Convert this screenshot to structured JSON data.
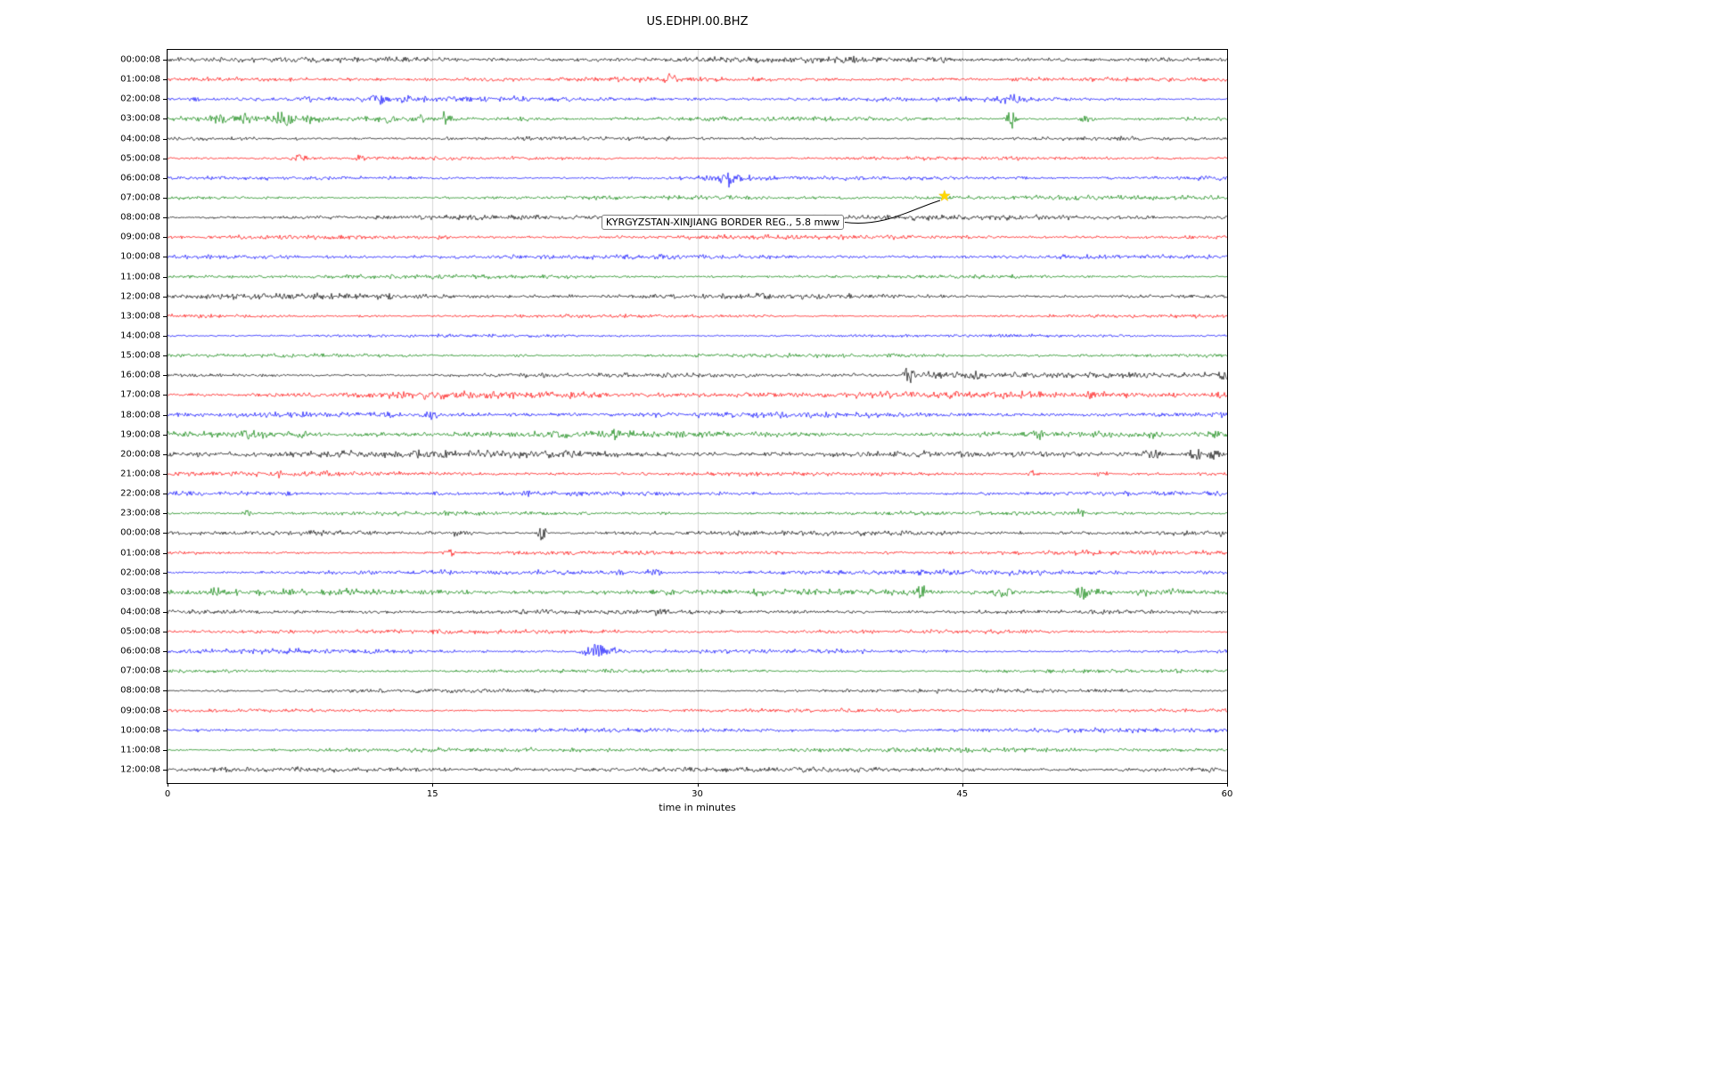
{
  "title": "US.EDHPI.00.BHZ",
  "chart_data": {
    "type": "line",
    "subtype": "seismogram-helicorder",
    "title": "US.EDHPI.00.BHZ",
    "xlabel": "time in minutes",
    "xlim": [
      0,
      60
    ],
    "xticks": [
      0,
      15,
      30,
      45,
      60
    ],
    "grid": "vertical",
    "legend": "none",
    "trace_colors": {
      "black": "#000000",
      "red": "#ff0000",
      "blue": "#0000ff",
      "green": "#008000"
    },
    "color_cycle": [
      "black",
      "red",
      "blue",
      "green"
    ],
    "rows": [
      {
        "label": "00:00:08",
        "color": "black",
        "noise": 1.3,
        "bursts": [
          [
            38.5,
            4,
            0.25
          ],
          [
            44,
            2,
            0.3
          ],
          [
            50.8,
            2.5,
            0.3
          ],
          [
            55.5,
            2,
            0.4
          ]
        ]
      },
      {
        "label": "01:00:08",
        "color": "red",
        "noise": 1.1,
        "bursts": [
          [
            23,
            1.5,
            0.4
          ],
          [
            28.4,
            6,
            0.35
          ]
        ]
      },
      {
        "label": "02:00:08",
        "color": "blue",
        "noise": 1.2,
        "bursts": [
          [
            1.5,
            2,
            0.4
          ],
          [
            8,
            1.8,
            0.4
          ],
          [
            12,
            4.5,
            0.7
          ],
          [
            13.4,
            3.5,
            0.5
          ],
          [
            47.3,
            5,
            0.5
          ],
          [
            48,
            5.5,
            0.5
          ]
        ]
      },
      {
        "label": "03:00:08",
        "color": "green",
        "noise": 1.3,
        "bursts": [
          [
            2.8,
            4.5,
            0.5
          ],
          [
            4.2,
            5,
            0.7
          ],
          [
            6.6,
            7,
            0.7
          ],
          [
            8.1,
            4,
            0.4
          ],
          [
            12.4,
            5.5,
            0.5
          ],
          [
            14.2,
            4.5,
            0.5
          ],
          [
            15.8,
            13,
            0.25
          ],
          [
            20,
            2,
            0.5
          ],
          [
            47.8,
            11,
            0.3
          ],
          [
            52,
            4,
            0.5
          ]
        ]
      },
      {
        "label": "04:00:08",
        "color": "black",
        "noise": 1.1,
        "bursts": [
          [
            16,
            1.5,
            0.3
          ],
          [
            20.3,
            4,
            0.3
          ]
        ]
      },
      {
        "label": "05:00:08",
        "color": "red",
        "noise": 1.1,
        "bursts": [
          [
            7.6,
            5.5,
            0.5
          ],
          [
            10.9,
            4.5,
            0.3
          ]
        ]
      },
      {
        "label": "06:00:08",
        "color": "blue",
        "noise": 1.2,
        "bursts": [
          [
            30.9,
            3.5,
            0.6
          ],
          [
            31.9,
            12,
            0.4
          ],
          [
            32.7,
            4,
            0.6
          ]
        ]
      },
      {
        "label": "07:00:08",
        "color": "green",
        "noise": 1.1,
        "bursts": [
          [
            45,
            1.2,
            2
          ]
        ]
      },
      {
        "label": "08:00:08",
        "color": "black",
        "noise": 1.2,
        "bursts": []
      },
      {
        "label": "09:00:08",
        "color": "red",
        "noise": 1.0,
        "bursts": [
          [
            15.5,
            1.5,
            0.3
          ]
        ]
      },
      {
        "label": "10:00:08",
        "color": "blue",
        "noise": 1.1,
        "bursts": []
      },
      {
        "label": "11:00:08",
        "color": "green",
        "noise": 1.0,
        "bursts": []
      },
      {
        "label": "12:00:08",
        "color": "black",
        "noise": 1.5,
        "bursts": [
          [
            4,
            1.5,
            0.5
          ]
        ]
      },
      {
        "label": "13:00:08",
        "color": "red",
        "noise": 1.0,
        "bursts": []
      },
      {
        "label": "14:00:08",
        "color": "blue",
        "noise": 1.0,
        "bursts": []
      },
      {
        "label": "15:00:08",
        "color": "green",
        "noise": 1.1,
        "bursts": [
          [
            5,
            1.5,
            0.5
          ],
          [
            20,
            1.5,
            0.5
          ]
        ]
      },
      {
        "label": "16:00:08",
        "color": "black",
        "noise": 1.3,
        "bursts": [
          [
            39,
            2,
            0.3
          ],
          [
            42,
            11,
            0.3
          ],
          [
            43.3,
            4,
            0.8
          ],
          [
            44.5,
            4,
            0.8
          ],
          [
            45.8,
            5,
            0.5
          ],
          [
            47.5,
            2.5,
            0.5
          ],
          [
            59.8,
            7,
            0.25
          ]
        ]
      },
      {
        "label": "17:00:08",
        "color": "red",
        "noise": 1.7,
        "bursts": [
          [
            1.5,
            2,
            0.4
          ],
          [
            13.6,
            3.5,
            0.4
          ],
          [
            15.5,
            4,
            0.4
          ],
          [
            39.3,
            3,
            0.3
          ],
          [
            52.3,
            3.5,
            0.3
          ],
          [
            59.6,
            4,
            0.3
          ]
        ]
      },
      {
        "label": "18:00:08",
        "color": "blue",
        "noise": 1.3,
        "bursts": [
          [
            6,
            2.5,
            0.4
          ],
          [
            7.5,
            3.5,
            0.4
          ],
          [
            9.8,
            3.5,
            0.4
          ],
          [
            12.3,
            4,
            0.5
          ],
          [
            14.9,
            5,
            0.4
          ],
          [
            35,
            1.5,
            0.4
          ],
          [
            43.5,
            2.5,
            0.4
          ],
          [
            59.6,
            3,
            0.3
          ]
        ]
      },
      {
        "label": "19:00:08",
        "color": "green",
        "noise": 1.5,
        "bursts": [
          [
            4.6,
            5,
            0.5
          ],
          [
            5.6,
            4,
            0.4
          ],
          [
            7.4,
            5,
            0.5
          ],
          [
            22.6,
            4,
            0.4
          ],
          [
            25.4,
            5,
            0.4
          ],
          [
            33,
            2,
            0.4
          ],
          [
            46.9,
            3.5,
            0.4
          ],
          [
            49.3,
            4.5,
            0.4
          ],
          [
            56,
            3,
            0.4
          ],
          [
            59.5,
            5,
            0.4
          ]
        ]
      },
      {
        "label": "20:00:08",
        "color": "black",
        "noise": 1.7,
        "bursts": [
          [
            1.8,
            3.5,
            0.4
          ],
          [
            22.9,
            4,
            0.4
          ],
          [
            42,
            2,
            0.4
          ],
          [
            55.8,
            7,
            0.5
          ],
          [
            58.3,
            8,
            0.5
          ],
          [
            59.3,
            7,
            0.4
          ]
        ]
      },
      {
        "label": "21:00:08",
        "color": "red",
        "noise": 1.2,
        "bursts": [
          [
            6.3,
            4.5,
            0.4
          ],
          [
            30,
            1.5,
            0.4
          ],
          [
            48.9,
            4.5,
            0.4
          ],
          [
            52.9,
            3.5,
            0.4
          ]
        ]
      },
      {
        "label": "22:00:08",
        "color": "blue",
        "noise": 1.3,
        "bursts": [
          [
            6.7,
            5.5,
            0.3
          ],
          [
            15.3,
            2.5,
            0.4
          ],
          [
            20.6,
            2.5,
            0.4
          ],
          [
            59.5,
            3.5,
            0.4
          ]
        ]
      },
      {
        "label": "23:00:08",
        "color": "green",
        "noise": 1.2,
        "bursts": [
          [
            4.5,
            3.5,
            0.4
          ],
          [
            28,
            1.5,
            0.5
          ],
          [
            51.6,
            5.5,
            0.4
          ]
        ]
      },
      {
        "label": "00:00:08",
        "color": "black",
        "noise": 1.4,
        "bursts": [
          [
            16.3,
            3.5,
            0.4
          ],
          [
            17,
            3,
            0.3
          ],
          [
            21.2,
            9.5,
            0.25
          ],
          [
            32.2,
            2.5,
            0.4
          ],
          [
            59.5,
            2.5,
            0.3
          ]
        ]
      },
      {
        "label": "01:00:08",
        "color": "red",
        "noise": 1.1,
        "bursts": [
          [
            16,
            4.5,
            0.4
          ]
        ]
      },
      {
        "label": "02:00:08",
        "color": "blue",
        "noise": 1.2,
        "bursts": [
          [
            21,
            2,
            0.4
          ],
          [
            25.6,
            3.5,
            0.5
          ],
          [
            27.5,
            4.5,
            0.5
          ]
        ]
      },
      {
        "label": "03:00:08",
        "color": "green",
        "noise": 1.4,
        "bursts": [
          [
            2.7,
            7,
            0.25
          ],
          [
            6.8,
            3,
            0.5
          ],
          [
            10.2,
            3,
            0.5
          ],
          [
            42.6,
            13,
            0.3
          ],
          [
            46.7,
            4,
            0.6
          ],
          [
            47.5,
            5,
            0.5
          ],
          [
            51.8,
            12,
            0.3
          ],
          [
            52.8,
            4.5,
            0.5
          ],
          [
            55.2,
            4,
            0.5
          ],
          [
            57,
            2.5,
            0.4
          ]
        ]
      },
      {
        "label": "04:00:08",
        "color": "black",
        "noise": 1.1,
        "bursts": [
          [
            20,
            1.5,
            0.3
          ],
          [
            27.9,
            4.5,
            0.3
          ]
        ]
      },
      {
        "label": "05:00:08",
        "color": "red",
        "noise": 1.1,
        "bursts": []
      },
      {
        "label": "06:00:08",
        "color": "blue",
        "noise": 1.2,
        "bursts": [
          [
            23.8,
            5,
            0.5
          ],
          [
            24.4,
            11,
            0.4
          ],
          [
            25.1,
            4.5,
            0.5
          ]
        ]
      },
      {
        "label": "07:00:08",
        "color": "green",
        "noise": 1.1,
        "bursts": []
      },
      {
        "label": "08:00:08",
        "color": "black",
        "noise": 1.2,
        "bursts": []
      },
      {
        "label": "09:00:08",
        "color": "red",
        "noise": 1.0,
        "bursts": []
      },
      {
        "label": "10:00:08",
        "color": "blue",
        "noise": 1.1,
        "bursts": []
      },
      {
        "label": "11:00:08",
        "color": "green",
        "noise": 1.1,
        "bursts": []
      },
      {
        "label": "12:00:08",
        "color": "black",
        "noise": 1.2,
        "bursts": []
      }
    ],
    "annotation": {
      "text": "KYRGYZSTAN-XINJIANG BORDER REG., 5.8 mww",
      "row_index": 7,
      "row_label": "07:00:08",
      "x_minutes": 44,
      "marker": "star",
      "marker_color": "#ffd700"
    }
  }
}
